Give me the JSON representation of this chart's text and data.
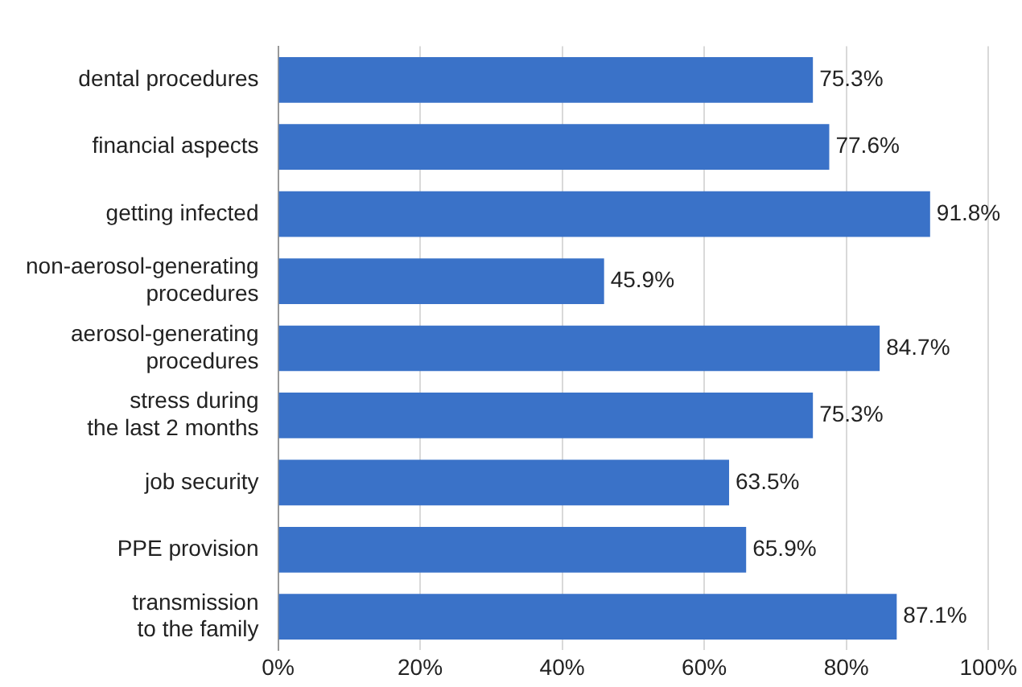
{
  "chart_data": {
    "type": "bar",
    "orientation": "horizontal",
    "categories": [
      "dental procedures",
      "financial aspects",
      "getting infected",
      "non-aerosol-generating\nprocedures",
      "aerosol-generating\nprocedures",
      "stress during\nthe last 2 months",
      "job security",
      "PPE provision",
      "transmission\nto the family"
    ],
    "values": [
      75.3,
      77.6,
      91.8,
      45.9,
      84.7,
      75.3,
      63.5,
      65.9,
      87.1
    ],
    "value_labels": [
      "75.3%",
      "77.6%",
      "91.8%",
      "45.9%",
      "84.7%",
      "75.3%",
      "63.5%",
      "65.9%",
      "87.1%"
    ],
    "color": "#3a72c8",
    "xlim": [
      0,
      100
    ],
    "xticks": [
      {
        "value": 0,
        "label": "0%"
      },
      {
        "value": 20,
        "label": "20%"
      },
      {
        "value": 40,
        "label": "40%"
      },
      {
        "value": 60,
        "label": "60%"
      },
      {
        "value": 80,
        "label": "80%"
      },
      {
        "value": 100,
        "label": "100%"
      }
    ],
    "grid": "x",
    "legend": false
  }
}
